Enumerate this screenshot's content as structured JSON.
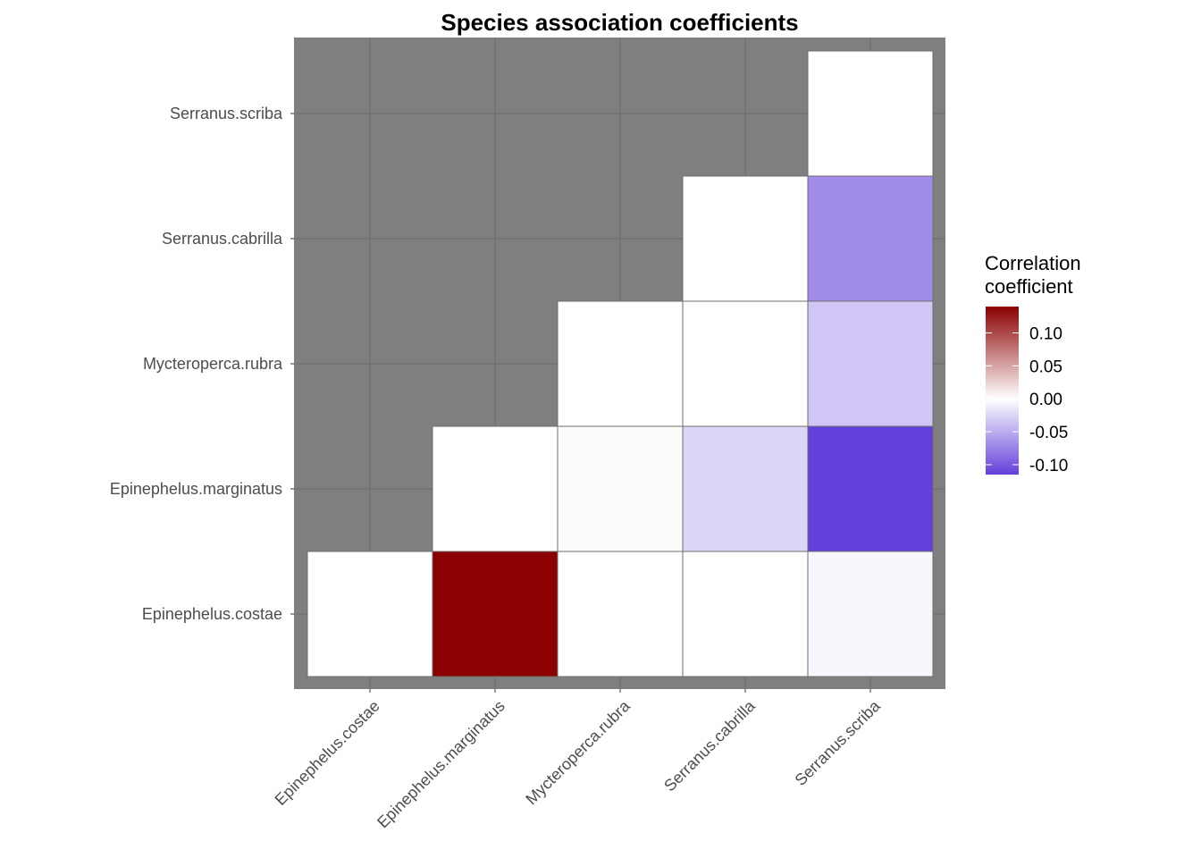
{
  "title": "Species association coefficients",
  "chart_data": {
    "type": "heatmap",
    "title": "Species association coefficients",
    "xlabel": "",
    "ylabel": "",
    "x_categories": [
      "Epinephelus.costae",
      "Epinephelus.marginatus",
      "Mycteroperca.rubra",
      "Serranus.cabrilla",
      "Serranus.scriba"
    ],
    "y_categories": [
      "Epinephelus.costae",
      "Epinephelus.marginatus",
      "Mycteroperca.rubra",
      "Serranus.cabrilla",
      "Serranus.scriba"
    ],
    "cells": [
      {
        "x": "Epinephelus.costae",
        "y": "Epinephelus.costae",
        "value": 0.0
      },
      {
        "x": "Epinephelus.marginatus",
        "y": "Epinephelus.costae",
        "value": 0.14
      },
      {
        "x": "Mycteroperca.rubra",
        "y": "Epinephelus.costae",
        "value": 0.0
      },
      {
        "x": "Serranus.cabrilla",
        "y": "Epinephelus.costae",
        "value": 0.0
      },
      {
        "x": "Serranus.scriba",
        "y": "Epinephelus.costae",
        "value": -0.005
      },
      {
        "x": "Epinephelus.marginatus",
        "y": "Epinephelus.marginatus",
        "value": 0.0
      },
      {
        "x": "Mycteroperca.rubra",
        "y": "Epinephelus.marginatus",
        "value": 0.003
      },
      {
        "x": "Serranus.cabrilla",
        "y": "Epinephelus.marginatus",
        "value": -0.025
      },
      {
        "x": "Serranus.scriba",
        "y": "Epinephelus.marginatus",
        "value": -0.115
      },
      {
        "x": "Mycteroperca.rubra",
        "y": "Mycteroperca.rubra",
        "value": 0.0
      },
      {
        "x": "Serranus.cabrilla",
        "y": "Mycteroperca.rubra",
        "value": 0.0
      },
      {
        "x": "Serranus.scriba",
        "y": "Mycteroperca.rubra",
        "value": -0.035
      },
      {
        "x": "Serranus.cabrilla",
        "y": "Serranus.cabrilla",
        "value": 0.0
      },
      {
        "x": "Serranus.scriba",
        "y": "Serranus.cabrilla",
        "value": -0.07
      },
      {
        "x": "Serranus.scriba",
        "y": "Serranus.scriba",
        "value": 0.0
      }
    ],
    "legend": {
      "title": "Correlation coefficient",
      "title_lines": [
        "Correlation",
        "coefficient"
      ],
      "position": "right",
      "range": [
        -0.115,
        0.14
      ],
      "ticks": [
        0.1,
        0.05,
        0.0,
        -0.05,
        -0.1
      ],
      "tick_labels": [
        "0.10",
        "0.05",
        "0.00",
        "-0.05",
        "-0.10"
      ],
      "low_color": "#6340db",
      "mid_color": "#ffffff",
      "high_color": "#8b0000"
    },
    "panel_background": "#7f7f7f",
    "grid": true
  }
}
